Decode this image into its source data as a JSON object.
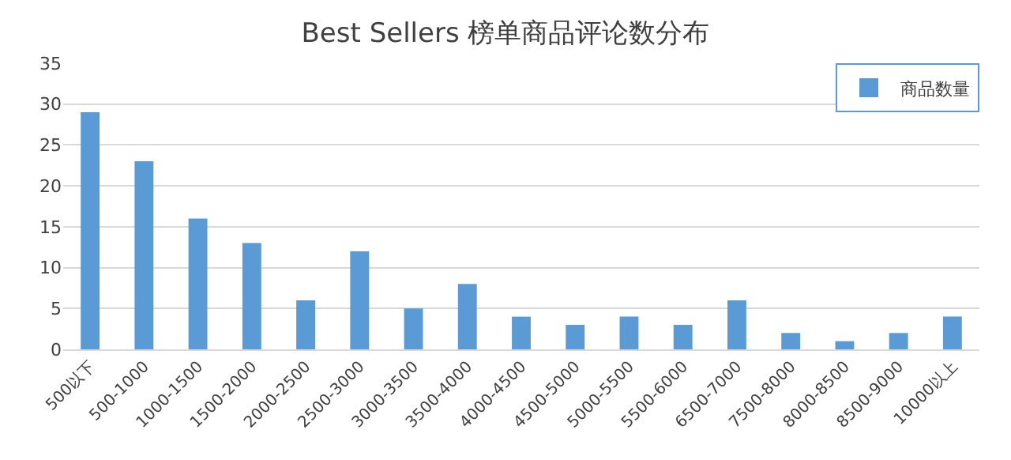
{
  "chart_data": {
    "type": "bar",
    "title": "Best Sellers 榜单商品评论数分布",
    "categories": [
      "500以下",
      "500-1000",
      "1000-1500",
      "1500-2000",
      "2000-2500",
      "2500-3000",
      "3000-3500",
      "3500-4000",
      "4000-4500",
      "4500-5000",
      "5000-5500",
      "5500-6000",
      "6500-7000",
      "7500-8000",
      "8000-8500",
      "8500-9000",
      "10000以上"
    ],
    "series": [
      {
        "name": "商品数量",
        "color": "#5b9bd5",
        "values": [
          29,
          23,
          16,
          13,
          6,
          12,
          5,
          8,
          4,
          3,
          4,
          3,
          6,
          2,
          1,
          2,
          4
        ]
      }
    ],
    "ylim": [
      0,
      35
    ],
    "yticks": [
      0,
      5,
      10,
      15,
      20,
      25,
      30,
      35
    ],
    "grid": "y",
    "legend": "top right"
  }
}
